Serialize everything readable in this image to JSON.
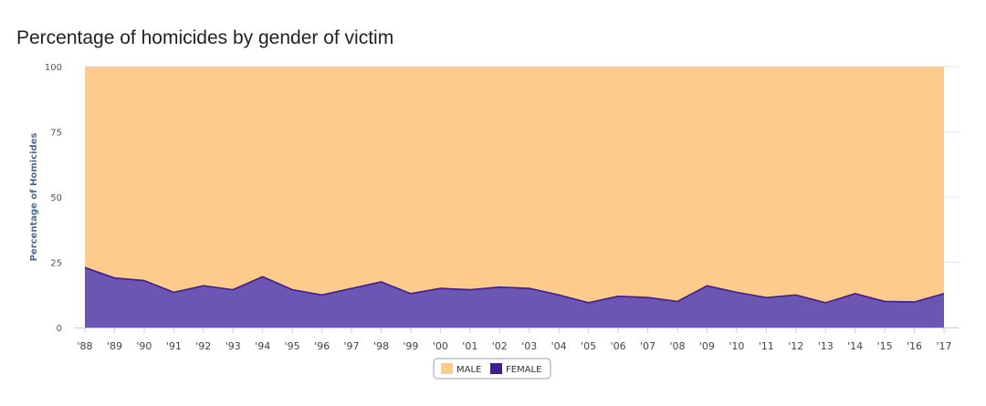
{
  "chart_data": {
    "type": "area",
    "stacked": true,
    "percent": true,
    "title": "Percentage of homicides by gender of victim",
    "ylabel": "Percentage of Homicides",
    "xlabel": "",
    "ylim": [
      0,
      100
    ],
    "yticks": [
      0,
      25,
      50,
      75,
      100
    ],
    "grid": true,
    "legend": "bottom-center",
    "categories": [
      "'88",
      "'89",
      "'90",
      "'91",
      "'92",
      "'93",
      "'94",
      "'95",
      "'96",
      "'97",
      "'98",
      "'99",
      "'00",
      "'01",
      "'02",
      "'03",
      "'04",
      "'05",
      "'06",
      "'07",
      "'08",
      "'09",
      "'10",
      "'11",
      "'12",
      "'13",
      "'14",
      "'15",
      "'16",
      "'17"
    ],
    "series": [
      {
        "name": "MALE",
        "color": "#ffcb8c",
        "values": [
          77,
          81,
          82,
          86.5,
          84,
          85.5,
          80.5,
          85.5,
          87.5,
          85,
          82.5,
          87,
          85,
          85.5,
          84.5,
          85,
          87.5,
          90.5,
          88,
          88.5,
          90,
          84,
          86.5,
          88.5,
          87.5,
          90.5,
          87,
          90,
          90.2,
          87
        ]
      },
      {
        "name": "FEMALE",
        "color": "#3c1f8a",
        "values": [
          23,
          19,
          18,
          13.5,
          16,
          14.5,
          19.5,
          14.5,
          12.5,
          15,
          17.5,
          13,
          15,
          14.5,
          15.5,
          15,
          12.5,
          9.5,
          12,
          11.5,
          10,
          16,
          13.5,
          11.5,
          12.5,
          9.5,
          13,
          10,
          9.8,
          13
        ]
      }
    ]
  }
}
